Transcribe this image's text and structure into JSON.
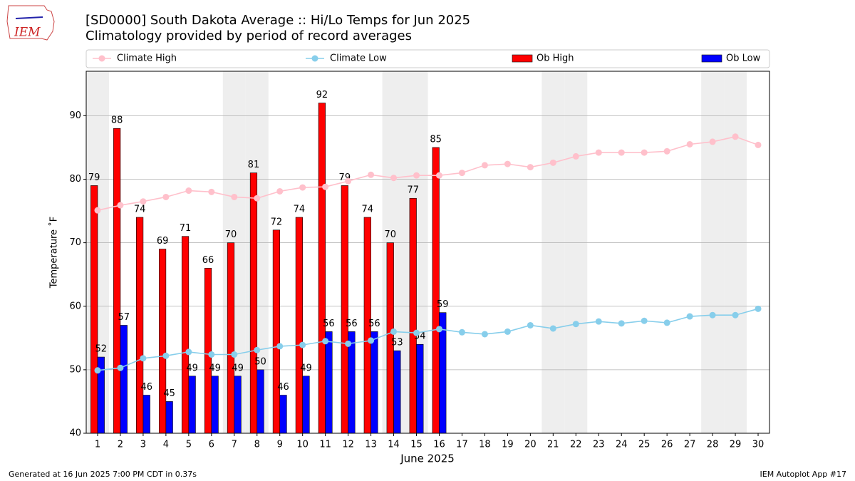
{
  "chart_data": {
    "type": "bar_line",
    "title": "[SD0000] South Dakota Average :: Hi/Lo Temps for Jun 2025",
    "subtitle": "Climatology provided by period of record averages",
    "logo_text": "IEM",
    "ylabel": "Temperature ˚F",
    "xlabel": "June 2025",
    "footer_left": "Generated at 16 Jun 2025 7:00 PM CDT in 0.37s",
    "footer_right": "IEM Autoplot App #17",
    "x": [
      1,
      2,
      3,
      4,
      5,
      6,
      7,
      8,
      9,
      10,
      11,
      12,
      13,
      14,
      15,
      16,
      17,
      18,
      19,
      20,
      21,
      22,
      23,
      24,
      25,
      26,
      27,
      28,
      29,
      30
    ],
    "xlim": [
      0.5,
      30.5
    ],
    "xticks": [
      1,
      2,
      3,
      4,
      5,
      6,
      7,
      8,
      9,
      10,
      11,
      12,
      13,
      14,
      15,
      16,
      17,
      18,
      19,
      20,
      21,
      22,
      23,
      24,
      25,
      26,
      27,
      28,
      29,
      30
    ],
    "ylim": [
      40,
      97
    ],
    "yticks": [
      40,
      50,
      60,
      70,
      80,
      90
    ],
    "grid": true,
    "legend": "top",
    "weekend_days": [
      1,
      7,
      8,
      14,
      15,
      21,
      22,
      28,
      29
    ],
    "series": [
      {
        "name": "Climate High",
        "kind": "line",
        "color": "#ffc0cb",
        "values": [
          75.1,
          75.9,
          76.5,
          77.2,
          78.2,
          78.0,
          77.2,
          77.0,
          78.1,
          78.7,
          78.8,
          79.7,
          80.7,
          80.2,
          80.6,
          80.6,
          81.0,
          82.2,
          82.4,
          81.9,
          82.6,
          83.6,
          84.2,
          84.2,
          84.2,
          84.4,
          85.5,
          85.9,
          86.7,
          85.4
        ]
      },
      {
        "name": "Climate Low",
        "kind": "line",
        "color": "#87ceeb",
        "values": [
          49.9,
          50.3,
          51.8,
          52.2,
          52.8,
          52.4,
          52.4,
          53.1,
          53.7,
          53.9,
          54.5,
          54.1,
          54.6,
          56.0,
          55.8,
          56.4,
          55.9,
          55.6,
          56.0,
          57.0,
          56.5,
          57.2,
          57.6,
          57.3,
          57.7,
          57.4,
          58.4,
          58.6,
          58.6,
          59.6
        ]
      },
      {
        "name": "Ob High",
        "kind": "bar",
        "color": "#ff0000",
        "values": [
          79,
          88,
          74,
          69,
          71,
          66,
          70,
          81,
          72,
          74,
          92,
          79,
          74,
          70,
          77,
          85,
          null,
          null,
          null,
          null,
          null,
          null,
          null,
          null,
          null,
          null,
          null,
          null,
          null,
          null
        ]
      },
      {
        "name": "Ob Low",
        "kind": "bar",
        "color": "#0000ff",
        "values": [
          52,
          57,
          46,
          45,
          49,
          49,
          49,
          50,
          46,
          49,
          56,
          56,
          56,
          53,
          54,
          59,
          null,
          null,
          null,
          null,
          null,
          null,
          null,
          null,
          null,
          null,
          null,
          null,
          null,
          null
        ]
      }
    ]
  }
}
